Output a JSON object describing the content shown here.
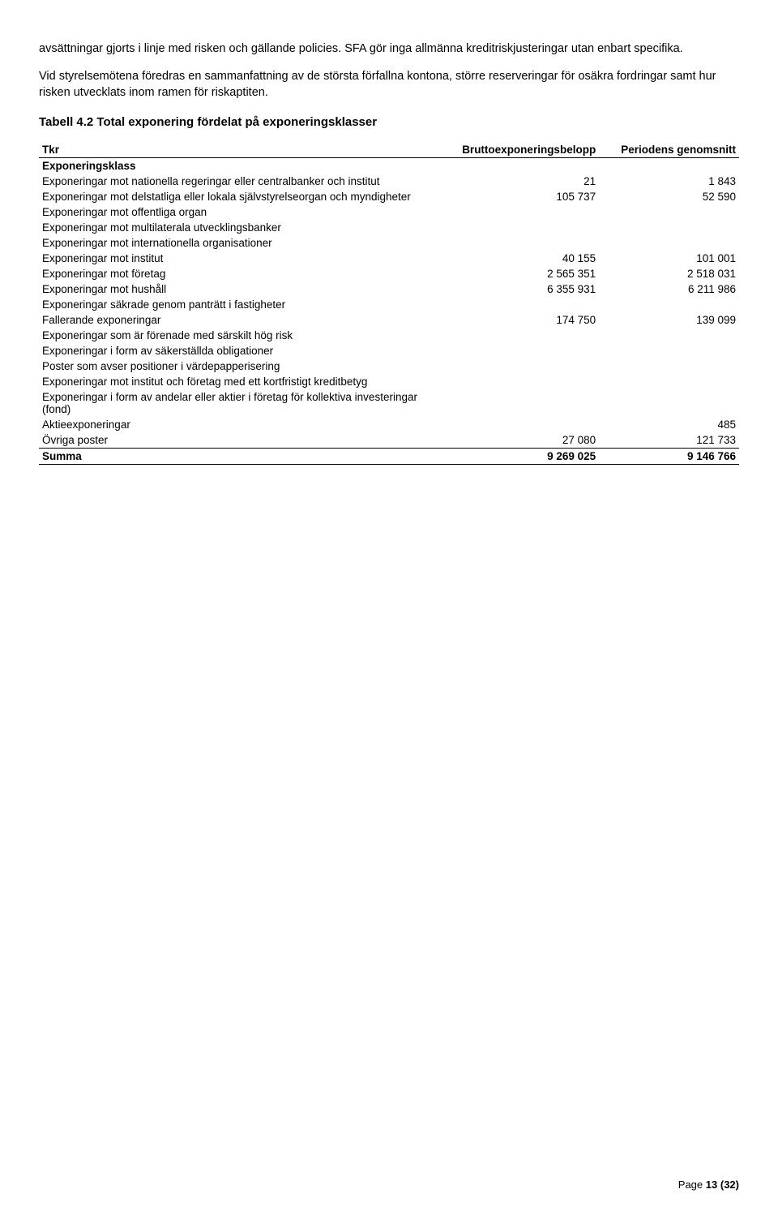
{
  "intro": {
    "p1": "avsättningar gjorts i linje med risken och gällande policies. SFA gör inga allmänna kreditriskjusteringar utan enbart specifika.",
    "p2": "Vid styrelsemötena föredras en sammanfattning av de största förfallna kontona, större reserveringar för osäkra fordringar samt hur risken utvecklats inom ramen för riskaptiten."
  },
  "table": {
    "title": "Tabell 4.2 Total exponering fördelat på exponeringsklasser",
    "col_tkr": "Tkr",
    "col_brutto": "Bruttoexponeringsbelopp",
    "col_period": "Periodens genomsnitt",
    "subheader": "Exponeringsklass",
    "rows": [
      {
        "label": "Exponeringar mot nationella regeringar eller centralbanker och institut",
        "brutto": "21",
        "period": "1 843"
      },
      {
        "label": "Exponeringar mot delstatliga eller lokala självstyrelseorgan och myndigheter",
        "brutto": "105 737",
        "period": "52 590"
      },
      {
        "label": "Exponeringar mot offentliga organ",
        "brutto": "",
        "period": ""
      },
      {
        "label": "Exponeringar mot multilaterala utvecklingsbanker",
        "brutto": "",
        "period": ""
      },
      {
        "label": "Exponeringar mot internationella organisationer",
        "brutto": "",
        "period": ""
      },
      {
        "label": "Exponeringar mot institut",
        "brutto": "40 155",
        "period": "101 001"
      },
      {
        "label": "Exponeringar mot företag",
        "brutto": "2 565 351",
        "period": "2 518 031"
      },
      {
        "label": "Exponeringar mot hushåll",
        "brutto": "6 355 931",
        "period": "6 211 986"
      },
      {
        "label": "Exponeringar säkrade genom panträtt i fastigheter",
        "brutto": "",
        "period": ""
      },
      {
        "label": "Fallerande exponeringar",
        "brutto": "174 750",
        "period": "139 099"
      },
      {
        "label": "Exponeringar som är förenade med särskilt hög risk",
        "brutto": "",
        "period": ""
      },
      {
        "label": "Exponeringar i form av säkerställda obligationer",
        "brutto": "",
        "period": ""
      },
      {
        "label": "Poster som avser positioner i värdepapperisering",
        "brutto": "",
        "period": ""
      },
      {
        "label": "Exponeringar mot institut och företag med ett kortfristigt kreditbetyg",
        "brutto": "",
        "period": ""
      },
      {
        "label": "Exponeringar i form av andelar eller aktier i företag för kollektiva investeringar (fond)",
        "brutto": "",
        "period": ""
      },
      {
        "label": "Aktieexponeringar",
        "brutto": "",
        "period": "485"
      },
      {
        "label": "Övriga poster",
        "brutto": "27 080",
        "period": "121 733"
      }
    ],
    "sum_label": "Summa",
    "sum_brutto": "9 269 025",
    "sum_period": "9 146 766"
  },
  "footer": {
    "page_label": "Page",
    "page_num": "13",
    "page_total": "(32)"
  },
  "style": {
    "text_color": "#000000",
    "bg_color": "#ffffff",
    "border_color": "#000000",
    "body_fontsize": 14.5,
    "table_fontsize": 13.5,
    "title_fontsize": 15
  }
}
